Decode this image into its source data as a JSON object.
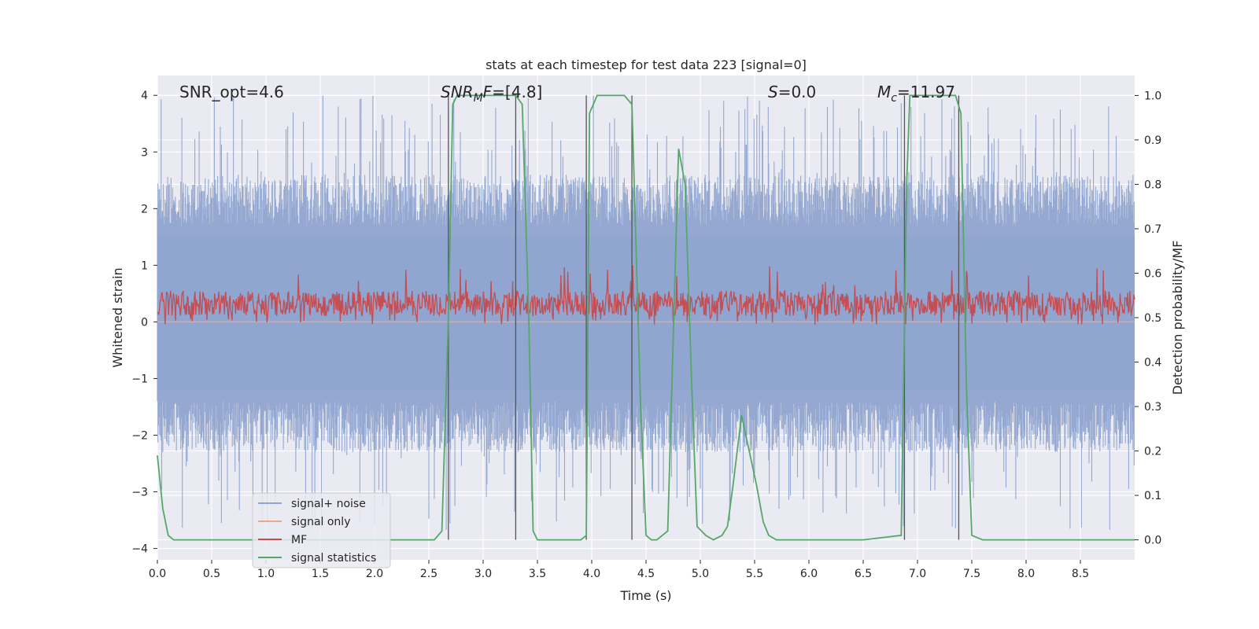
{
  "chart_data": {
    "type": "line",
    "title": "stats at each timestep for test data 223 [signal=0]",
    "xlabel": "Time (s)",
    "ylabel": "Whitened strain",
    "ylabel_right": "Detection probability/MF",
    "xlim": [
      0.0,
      9.0
    ],
    "ylim": [
      -4.2,
      4.35
    ],
    "ylim_right": [
      -0.045,
      1.045
    ],
    "xticks": [
      "0.0",
      "0.5",
      "1.0",
      "1.5",
      "2.0",
      "2.5",
      "3.0",
      "3.5",
      "4.0",
      "4.5",
      "5.0",
      "5.5",
      "6.0",
      "6.5",
      "7.0",
      "7.5",
      "8.0",
      "8.5"
    ],
    "xtick_values": [
      0.0,
      0.5,
      1.0,
      1.5,
      2.0,
      2.5,
      3.0,
      3.5,
      4.0,
      4.5,
      5.0,
      5.5,
      6.0,
      6.5,
      7.0,
      7.5,
      8.0,
      8.5
    ],
    "yticks": [
      "4",
      "3",
      "2",
      "1",
      "0",
      "−1",
      "−2",
      "−3",
      "−4"
    ],
    "ytick_values": [
      4,
      3,
      2,
      1,
      0,
      -1,
      -2,
      -3,
      -4
    ],
    "yticks_right": [
      "1.0",
      "0.9",
      "0.8",
      "0.7",
      "0.6",
      "0.5",
      "0.4",
      "0.3",
      "0.2",
      "0.1",
      "0.0"
    ],
    "ytick_right_values": [
      1.0,
      0.9,
      0.8,
      0.7,
      0.6,
      0.5,
      0.4,
      0.3,
      0.2,
      0.1,
      0.0
    ],
    "annotations": {
      "snr_opt": "SNR_opt=4.6",
      "snr_mf_label": "SNR",
      "snr_mf_sub": "M",
      "snr_mf_mid": "F",
      "snr_mf_value": "=[4.8]",
      "s_label": "S",
      "s_value": "=0.0",
      "mc_label": "M",
      "mc_sub": "c",
      "mc_value": "=11.97"
    },
    "legend": {
      "placement": "lower-left",
      "entries": [
        {
          "label": "signal+ noise",
          "color": "#8fa4cf"
        },
        {
          "label": "signal only",
          "color": "#e8a98c"
        },
        {
          "label": "MF",
          "color": "#c44e52"
        },
        {
          "label": "signal statistics",
          "color": "#55a868"
        }
      ]
    },
    "series": [
      {
        "name": "signal+ noise",
        "axis": "left",
        "style": "noise band",
        "typical_range": [
          -1.4,
          1.7
        ],
        "peak_range": [
          -3.7,
          4.0
        ],
        "color": "#8fa4cf"
      },
      {
        "name": "signal only",
        "axis": "left",
        "values_constant": 0.0,
        "color": "#e8a98c"
      },
      {
        "name": "MF",
        "axis": "left",
        "style": "noise band",
        "typical_range": [
          0.0,
          0.55
        ],
        "peak_range": [
          -0.05,
          1.0
        ],
        "color": "#c44e52"
      },
      {
        "name": "signal statistics",
        "axis": "right",
        "color": "#55a868",
        "x": [
          0.0,
          0.05,
          0.1,
          0.15,
          0.3,
          1.0,
          2.0,
          2.55,
          2.62,
          2.68,
          2.72,
          2.76,
          2.82,
          3.3,
          3.36,
          3.42,
          3.46,
          3.5,
          3.9,
          3.95,
          3.98,
          4.05,
          4.3,
          4.37,
          4.45,
          4.5,
          4.55,
          4.6,
          4.7,
          4.75,
          4.8,
          4.86,
          4.92,
          4.97,
          5.05,
          5.12,
          5.2,
          5.25,
          5.3,
          5.38,
          5.45,
          5.52,
          5.58,
          5.63,
          5.7,
          5.8,
          6.0,
          6.5,
          6.85,
          6.9,
          6.93,
          6.97,
          7.35,
          7.4,
          7.45,
          7.5,
          7.6,
          8.0,
          9.0
        ],
        "values": [
          0.19,
          0.07,
          0.01,
          0.0,
          0.0,
          0.0,
          0.0,
          0.0,
          0.02,
          0.5,
          0.98,
          1.0,
          1.0,
          1.0,
          0.98,
          0.5,
          0.02,
          0.0,
          0.0,
          0.01,
          0.96,
          1.0,
          1.0,
          0.98,
          0.3,
          0.01,
          0.0,
          0.0,
          0.02,
          0.45,
          0.88,
          0.8,
          0.35,
          0.03,
          0.01,
          0.0,
          0.01,
          0.03,
          0.12,
          0.28,
          0.2,
          0.12,
          0.04,
          0.01,
          0.0,
          0.0,
          0.0,
          0.0,
          0.01,
          0.8,
          1.0,
          1.0,
          1.0,
          0.96,
          0.35,
          0.01,
          0.0,
          0.0,
          0.0
        ]
      }
    ],
    "vertical_markers_s": [
      2.68,
      3.3,
      3.95,
      4.37,
      6.88,
      7.38
    ]
  }
}
